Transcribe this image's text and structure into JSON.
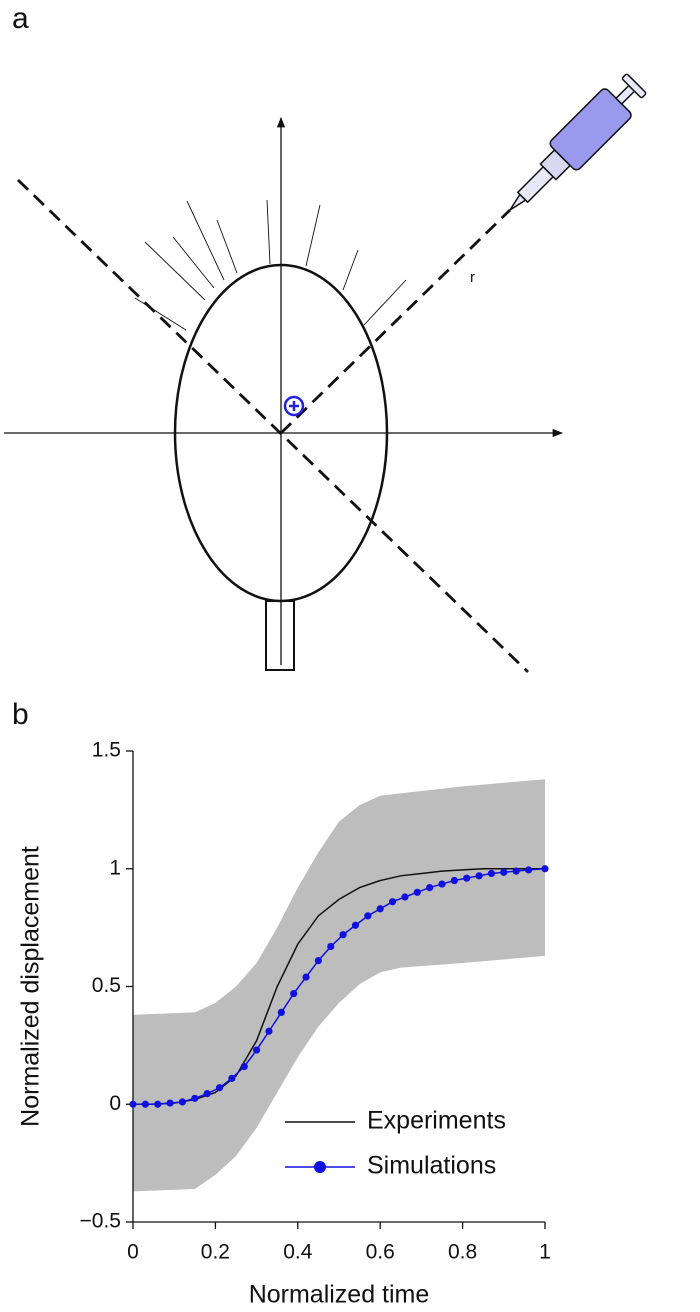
{
  "panel_labels": [
    "a",
    "b"
  ],
  "diagram": {
    "radius_label": "r"
  },
  "chart_data": {
    "type": "line",
    "x_label": "Normalized time",
    "y_label": "Normalized displacement",
    "xlim": [
      0,
      1
    ],
    "ylim": [
      -0.5,
      1.5
    ],
    "xticks": [
      0,
      0.2,
      0.4,
      0.6,
      0.8,
      1
    ],
    "yticks": [
      {
        "value": -0.5,
        "label": "−0.5"
      },
      0,
      0.5,
      1,
      1.5
    ],
    "band": {
      "color": "#bdbdbd",
      "x": [
        0,
        0.15,
        0.2,
        0.25,
        0.3,
        0.35,
        0.4,
        0.45,
        0.5,
        0.55,
        0.6,
        0.65,
        0.8,
        1
      ],
      "upper": [
        0.38,
        0.39,
        0.43,
        0.5,
        0.6,
        0.75,
        0.92,
        1.07,
        1.2,
        1.27,
        1.31,
        1.32,
        1.35,
        1.38
      ],
      "lower": [
        -0.37,
        -0.36,
        -0.3,
        -0.22,
        -0.1,
        0.05,
        0.2,
        0.33,
        0.43,
        0.51,
        0.56,
        0.58,
        0.6,
        0.63
      ]
    },
    "series": [
      {
        "name": "Experiments",
        "color": "#111111",
        "markers": false,
        "x": [
          0,
          0.05,
          0.1,
          0.15,
          0.2,
          0.25,
          0.3,
          0.35,
          0.4,
          0.45,
          0.5,
          0.55,
          0.6,
          0.65,
          0.7,
          0.75,
          0.8,
          0.85,
          0.9,
          0.95,
          1
        ],
        "values": [
          0,
          0.001,
          0.005,
          0.02,
          0.05,
          0.12,
          0.27,
          0.5,
          0.68,
          0.8,
          0.87,
          0.92,
          0.95,
          0.97,
          0.98,
          0.99,
          0.995,
          1,
          1,
          1,
          1
        ]
      },
      {
        "name": "Simulations",
        "color": "#1010e0",
        "markers": true,
        "x": [
          0,
          0.03,
          0.06,
          0.09,
          0.12,
          0.15,
          0.18,
          0.21,
          0.24,
          0.27,
          0.3,
          0.33,
          0.36,
          0.39,
          0.42,
          0.45,
          0.48,
          0.51,
          0.54,
          0.57,
          0.6,
          0.63,
          0.66,
          0.69,
          0.72,
          0.75,
          0.78,
          0.81,
          0.84,
          0.87,
          0.9,
          0.93,
          0.96,
          1
        ],
        "values": [
          0,
          0,
          0,
          0.005,
          0.01,
          0.025,
          0.045,
          0.07,
          0.11,
          0.16,
          0.23,
          0.31,
          0.39,
          0.47,
          0.54,
          0.61,
          0.67,
          0.72,
          0.76,
          0.8,
          0.83,
          0.86,
          0.88,
          0.9,
          0.92,
          0.935,
          0.95,
          0.96,
          0.97,
          0.98,
          0.985,
          0.99,
          0.995,
          1
        ]
      }
    ]
  }
}
